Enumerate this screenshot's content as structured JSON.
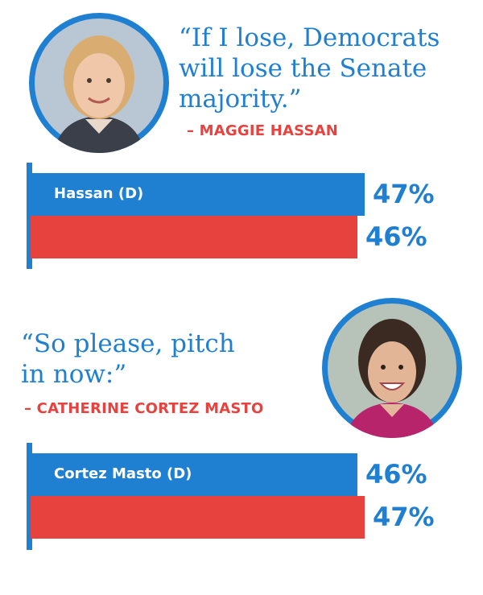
{
  "colors": {
    "dem": "#1f7fd0",
    "rep": "#e8423f",
    "text_blue": "#1f7fd0",
    "text_red": "#e8423f"
  },
  "panels": [
    {
      "quote_lines": [
        "“If I lose, Democrats",
        "will lose the Senate",
        "majority.”"
      ],
      "attribution": "– MAGGIE HASSAN",
      "photo": "maggie-hassan-photo"
    },
    {
      "quote_lines": [
        "“So please, pitch",
        "in now:”"
      ],
      "attribution": "– CATHERINE CORTEZ MASTO",
      "photo": "catherine-cortez-masto-photo"
    }
  ],
  "chart_data": [
    {
      "type": "bar",
      "orientation": "horizontal",
      "categories": [
        "Hassan (D)",
        ""
      ],
      "values": [
        47,
        46
      ],
      "labels": [
        "47%",
        "46%"
      ],
      "colors": [
        "#1f7fd0",
        "#e8423f"
      ],
      "xlim": [
        0,
        47
      ]
    },
    {
      "type": "bar",
      "orientation": "horizontal",
      "categories": [
        "Cortez Masto (D)",
        ""
      ],
      "values": [
        46,
        47
      ],
      "labels": [
        "46%",
        "47%"
      ],
      "colors": [
        "#1f7fd0",
        "#e8423f"
      ],
      "xlim": [
        0,
        47
      ]
    }
  ]
}
